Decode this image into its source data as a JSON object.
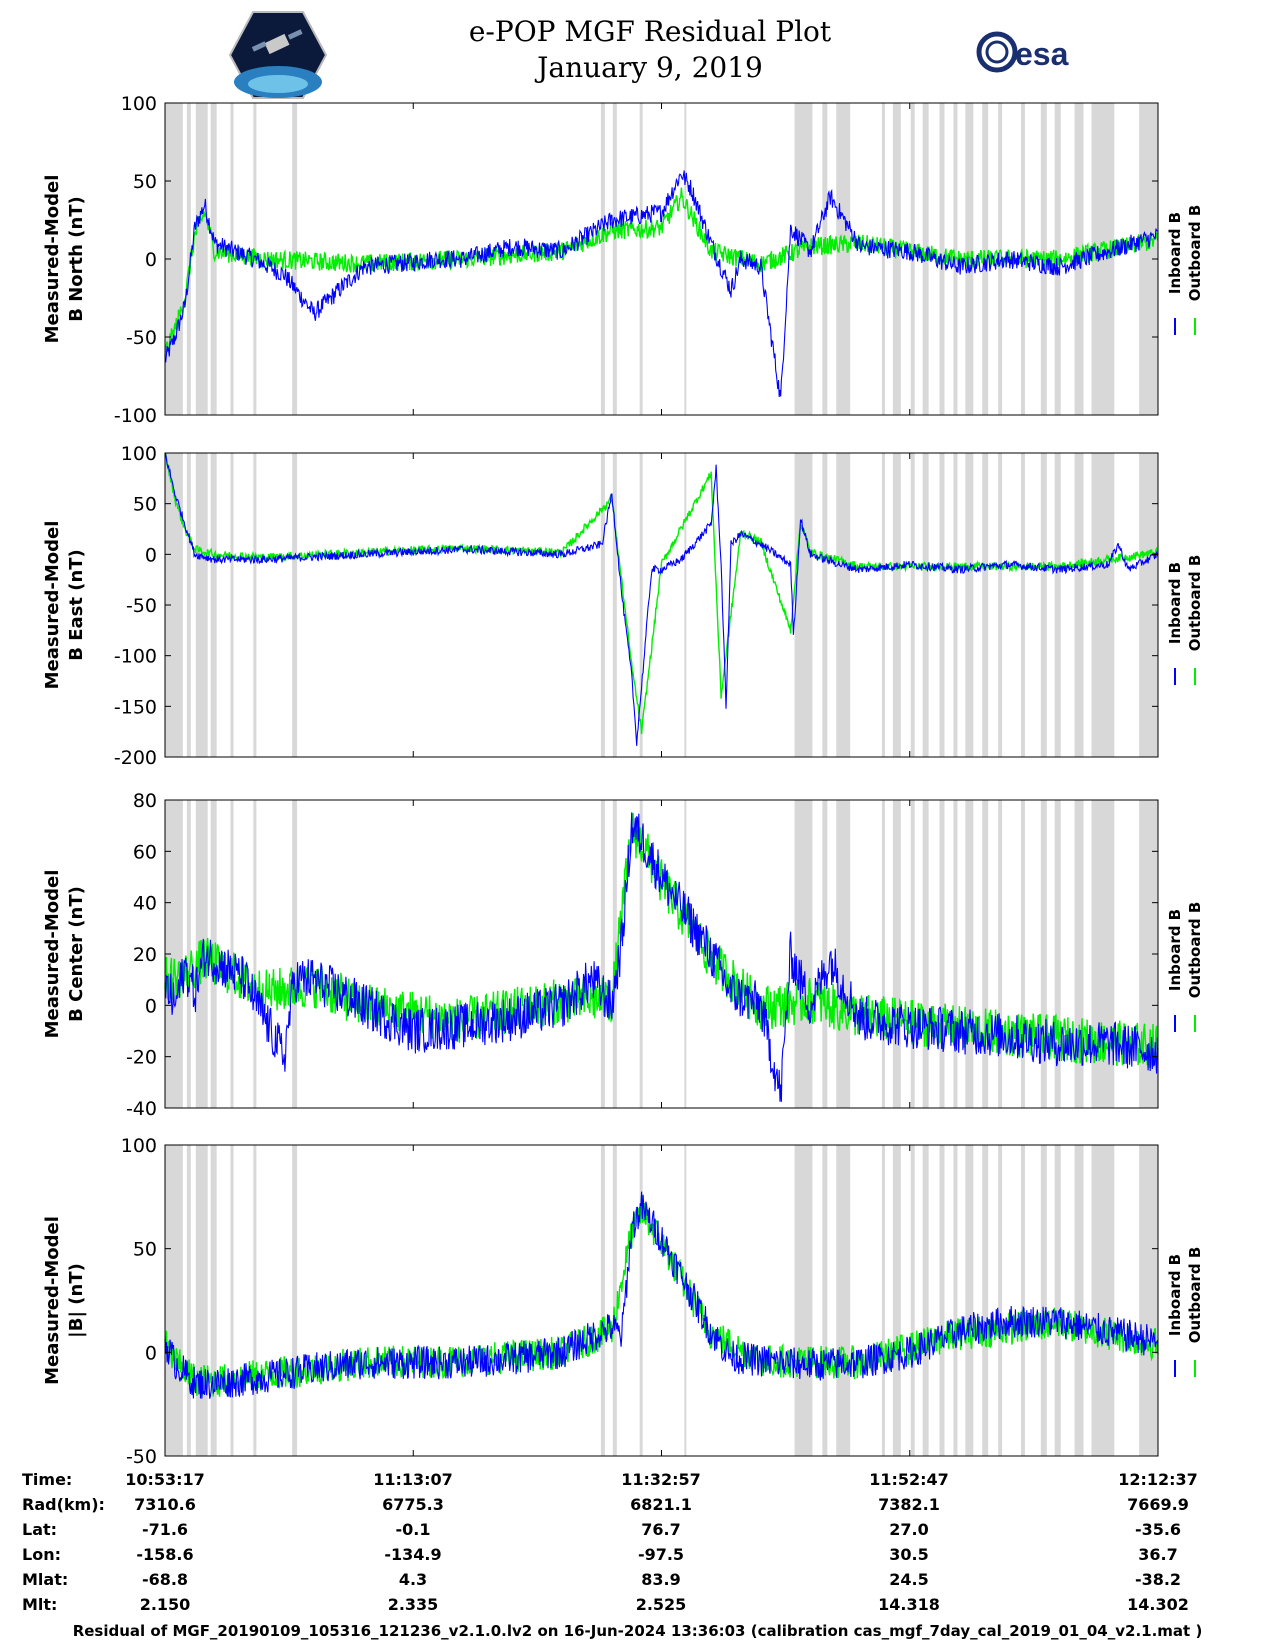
{
  "title": "e-POP MGF Residual Plot",
  "subtitle": "January 9, 2019",
  "logos": {
    "left": "cassiope-mission-logo",
    "right_text": "esa"
  },
  "legend": {
    "inboard": "Inboard B",
    "outboard": "Outboard B"
  },
  "colors": {
    "inboard": "#0000ff",
    "outboard": "#00ee00",
    "shade": "#d8d8d8"
  },
  "chart_data": [
    {
      "type": "line",
      "ylabel_line1": "Measured-Model",
      "ylabel_line2": "B North (nT)",
      "ylim": [
        -100,
        100
      ],
      "yticks": [
        -100,
        -50,
        0,
        50,
        100
      ],
      "x_ticks": [
        "10:53:17",
        "11:13:07",
        "11:32:57",
        "11:52:47",
        "12:12:37"
      ],
      "series": [
        {
          "name": "Inboard B",
          "x": [
            0,
            1,
            2,
            3,
            4,
            5,
            7,
            9,
            12,
            15,
            20,
            25,
            27,
            30,
            35,
            40,
            45,
            50,
            52,
            53,
            55,
            57,
            58,
            60,
            62,
            63,
            65,
            67,
            70,
            75,
            80,
            85,
            90,
            95,
            100
          ],
          "y": [
            -65,
            -50,
            -30,
            20,
            35,
            10,
            5,
            0,
            -10,
            -35,
            -5,
            -2,
            0,
            0,
            8,
            5,
            25,
            30,
            55,
            45,
            10,
            -20,
            0,
            -5,
            -90,
            20,
            5,
            40,
            8,
            5,
            -5,
            0,
            -5,
            5,
            15
          ]
        },
        {
          "name": "Outboard B",
          "x": [
            0,
            1,
            2,
            3,
            4,
            5,
            10,
            20,
            30,
            40,
            45,
            50,
            52,
            55,
            60,
            65,
            70,
            80,
            90,
            100
          ],
          "y": [
            -60,
            -45,
            -25,
            15,
            30,
            5,
            0,
            -3,
            0,
            5,
            18,
            20,
            40,
            5,
            -3,
            8,
            10,
            0,
            0,
            12
          ]
        }
      ],
      "noise": 6
    },
    {
      "type": "line",
      "ylabel_line1": "Measured-Model",
      "ylabel_line2": "B East (nT)",
      "ylim": [
        -200,
        100
      ],
      "yticks": [
        -200,
        -150,
        -100,
        -50,
        0,
        50,
        100
      ],
      "x_ticks": [
        "10:53:17",
        "11:13:07",
        "11:32:57",
        "11:52:47",
        "12:12:37"
      ],
      "series": [
        {
          "name": "Inboard B",
          "x": [
            0,
            1,
            2,
            3,
            5,
            10,
            20,
            30,
            40,
            44,
            45,
            46,
            47,
            47.5,
            48,
            49,
            50,
            52,
            55,
            55.5,
            56,
            56.5,
            57,
            58,
            60,
            63,
            63.3,
            64,
            65,
            68,
            70,
            75,
            80,
            85,
            90,
            95,
            96,
            97,
            100
          ],
          "y": [
            100,
            60,
            30,
            0,
            -5,
            -5,
            0,
            5,
            0,
            10,
            60,
            -40,
            -120,
            -185,
            -130,
            -15,
            -15,
            -5,
            30,
            85,
            -10,
            -150,
            10,
            20,
            10,
            -10,
            -80,
            35,
            0,
            -10,
            -15,
            -10,
            -15,
            -10,
            -15,
            -10,
            10,
            -15,
            0
          ]
        },
        {
          "name": "Outboard B",
          "x": [
            0,
            1,
            2,
            3,
            5,
            10,
            20,
            30,
            40,
            45,
            47,
            48,
            50,
            55,
            56,
            58,
            60,
            63,
            64,
            65,
            70,
            80,
            90,
            100
          ],
          "y": [
            100,
            55,
            25,
            5,
            0,
            -3,
            2,
            6,
            2,
            55,
            -110,
            -175,
            -10,
            80,
            -140,
            22,
            12,
            -75,
            32,
            2,
            -12,
            -12,
            -12,
            2
          ]
        }
      ],
      "noise": 4
    },
    {
      "type": "line",
      "ylabel_line1": "Measured-Model",
      "ylabel_line2": "B Center (nT)",
      "ylim": [
        -40,
        80
      ],
      "yticks": [
        -40,
        -20,
        0,
        20,
        40,
        60,
        80
      ],
      "x_ticks": [
        "10:53:17",
        "11:13:07",
        "11:32:57",
        "11:52:47",
        "12:12:37"
      ],
      "series": [
        {
          "name": "Inboard B",
          "x": [
            0,
            1,
            2,
            3,
            4,
            6,
            8,
            12,
            13,
            15,
            20,
            25,
            30,
            35,
            40,
            43,
            45,
            46,
            47,
            48,
            50,
            55,
            57,
            60,
            62,
            63,
            65,
            67,
            70,
            75,
            80,
            85,
            90,
            95,
            100
          ],
          "y": [
            8,
            0,
            15,
            5,
            20,
            15,
            10,
            -20,
            10,
            10,
            0,
            -10,
            -8,
            -5,
            0,
            10,
            0,
            25,
            70,
            65,
            50,
            20,
            5,
            0,
            -35,
            20,
            0,
            18,
            -5,
            -8,
            -10,
            -12,
            -15,
            -15,
            -18
          ]
        },
        {
          "name": "Outboard B",
          "x": [
            0,
            2,
            4,
            6,
            10,
            15,
            20,
            30,
            40,
            45,
            47,
            48,
            50,
            55,
            60,
            65,
            70,
            80,
            90,
            100
          ],
          "y": [
            10,
            12,
            18,
            14,
            5,
            8,
            0,
            -6,
            2,
            2,
            68,
            63,
            48,
            18,
            -1,
            2,
            -4,
            -9,
            -13,
            -16
          ]
        }
      ],
      "noise": 9
    },
    {
      "type": "line",
      "ylabel_line1": "Measured-Model",
      "ylabel_line2": "|B| (nT)",
      "ylim": [
        -50,
        100
      ],
      "yticks": [
        -50,
        0,
        50,
        100
      ],
      "x_ticks": [
        "10:53:17",
        "11:13:07",
        "11:32:57",
        "11:52:47",
        "12:12:37"
      ],
      "series": [
        {
          "name": "Inboard B",
          "x": [
            0,
            1,
            2,
            3,
            5,
            10,
            15,
            20,
            25,
            30,
            35,
            40,
            44,
            45,
            46,
            47,
            48,
            50,
            55,
            57,
            60,
            62,
            65,
            70,
            75,
            80,
            85,
            90,
            95,
            100
          ],
          "y": [
            5,
            -5,
            -10,
            -15,
            -15,
            -12,
            -8,
            -5,
            -5,
            -5,
            -3,
            0,
            10,
            12,
            8,
            60,
            70,
            55,
            10,
            -2,
            -4,
            -5,
            -6,
            -5,
            0,
            10,
            15,
            15,
            10,
            5
          ]
        },
        {
          "name": "Outboard B",
          "x": [
            0,
            1,
            2,
            3,
            5,
            10,
            20,
            30,
            40,
            45,
            47,
            48,
            50,
            55,
            60,
            70,
            80,
            90,
            100
          ],
          "y": [
            4,
            -4,
            -9,
            -13,
            -14,
            -11,
            -5,
            -4,
            0,
            11,
            58,
            68,
            53,
            9,
            -4,
            -5,
            9,
            14,
            4
          ]
        }
      ],
      "noise": 8
    }
  ],
  "shade_bands": [
    [
      0,
      1.8
    ],
    [
      2.2,
      2.6
    ],
    [
      3.1,
      4.3
    ],
    [
      4.6,
      5.2
    ],
    [
      6.6,
      6.9
    ],
    [
      8.9,
      9.2
    ],
    [
      12.8,
      13.3
    ],
    [
      43.9,
      44.3
    ],
    [
      45.1,
      45.5
    ],
    [
      47.8,
      48.1
    ],
    [
      52.3,
      52.5
    ],
    [
      63.4,
      65.2
    ],
    [
      66.2,
      66.7
    ],
    [
      67.6,
      69.0
    ],
    [
      72.2,
      72.5
    ],
    [
      73.3,
      74.1
    ],
    [
      75.1,
      75.5
    ],
    [
      76.3,
      76.9
    ],
    [
      78.0,
      78.5
    ],
    [
      79.4,
      79.8
    ],
    [
      80.6,
      81.4
    ],
    [
      82.3,
      82.9
    ],
    [
      83.9,
      84.3
    ],
    [
      86.2,
      86.6
    ],
    [
      88.2,
      88.8
    ],
    [
      89.6,
      90.2
    ],
    [
      91.6,
      92.5
    ],
    [
      93.3,
      95.6
    ],
    [
      98.1,
      100
    ]
  ],
  "info_table": {
    "labels": [
      "Time:",
      "Rad(km):",
      "Lat:",
      "Lon:",
      "Mlat:",
      "Mlt:"
    ],
    "columns": [
      [
        "10:53:17",
        "7310.6",
        "-71.6",
        "-158.6",
        "-68.8",
        "2.150"
      ],
      [
        "11:13:07",
        "6775.3",
        "-0.1",
        "-134.9",
        "4.3",
        "2.335"
      ],
      [
        "11:32:57",
        "6821.1",
        "76.7",
        "-97.5",
        "83.9",
        "2.525"
      ],
      [
        "11:52:47",
        "7382.1",
        "27.0",
        "30.5",
        "24.5",
        "14.318"
      ],
      [
        "12:12:37",
        "7669.9",
        "-35.6",
        "36.7",
        "-38.2",
        "14.302"
      ]
    ]
  },
  "footer": "Residual of MGF_20190109_105316_121236_v2.1.0.lv2 on 16-Jun-2024 13:36:03 (calibration cas_mgf_7day_cal_2019_01_04_v2.1.mat )"
}
